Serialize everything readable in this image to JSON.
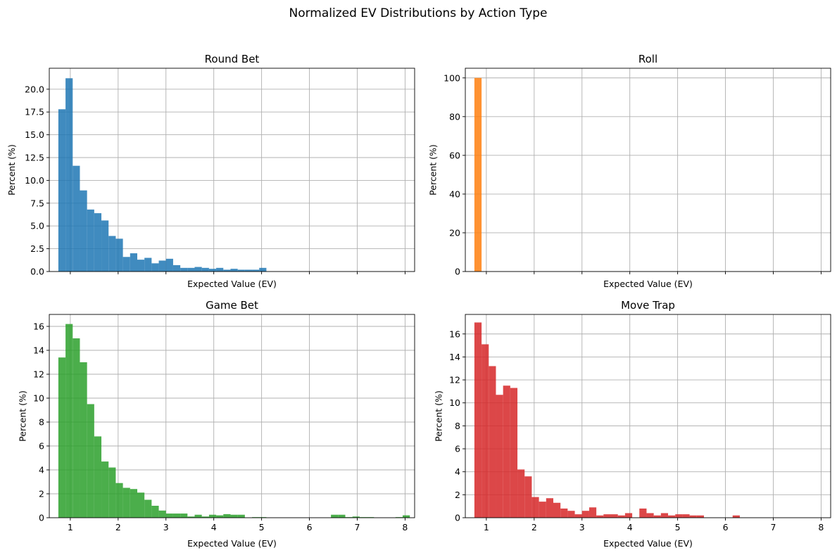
{
  "figure_title": "Normalized EV Distributions by Action Type",
  "chart_data": [
    {
      "type": "bar",
      "title": "Round Bet",
      "xlabel": "Expected Value (EV)",
      "ylabel": "Percent (%)",
      "color": "#1f77b4",
      "xlim": [
        0.56,
        8.2
      ],
      "ylim": [
        0,
        22.3
      ],
      "xticks": [
        1,
        2,
        3,
        4,
        5,
        6,
        7,
        8
      ],
      "show_xtick_labels": false,
      "yticks": [
        0.0,
        2.5,
        5.0,
        7.5,
        10.0,
        12.5,
        15.0,
        17.5,
        20.0
      ],
      "ytick_labels": [
        "0.0",
        "2.5",
        "5.0",
        "7.5",
        "10.0",
        "12.5",
        "15.0",
        "17.5",
        "20.0"
      ],
      "grid": true,
      "bin_start": 0.75,
      "bin_width": 0.15,
      "values": [
        17.8,
        21.2,
        11.6,
        8.9,
        6.8,
        6.4,
        5.6,
        3.9,
        3.6,
        1.6,
        2.0,
        1.3,
        1.5,
        0.9,
        1.2,
        1.4,
        0.7,
        0.4,
        0.4,
        0.5,
        0.4,
        0.3,
        0.4,
        0.2,
        0.3,
        0.2,
        0.2,
        0.2,
        0.4
      ]
    },
    {
      "type": "bar",
      "title": "Roll",
      "xlabel": "Expected Value (EV)",
      "ylabel": "Percent (%)",
      "color": "#ff7f0e",
      "xlim": [
        0.56,
        8.2
      ],
      "ylim": [
        0,
        105
      ],
      "xticks": [
        1,
        2,
        3,
        4,
        5,
        6,
        7,
        8
      ],
      "show_xtick_labels": false,
      "yticks": [
        0,
        20,
        40,
        60,
        80,
        100
      ],
      "ytick_labels": [
        "0",
        "20",
        "40",
        "60",
        "80",
        "100"
      ],
      "grid": true,
      "bin_start": 0.75,
      "bin_width": 0.15,
      "values": [
        100
      ]
    },
    {
      "type": "bar",
      "title": "Game Bet",
      "xlabel": "Expected Value (EV)",
      "ylabel": "Percent (%)",
      "color": "#2ca02c",
      "xlim": [
        0.56,
        8.2
      ],
      "ylim": [
        0,
        17.0
      ],
      "xticks": [
        1,
        2,
        3,
        4,
        5,
        6,
        7,
        8
      ],
      "xtick_labels": [
        "1",
        "2",
        "3",
        "4",
        "5",
        "6",
        "7",
        "8"
      ],
      "show_xtick_labels": true,
      "yticks": [
        0,
        2,
        4,
        6,
        8,
        10,
        12,
        14,
        16
      ],
      "ytick_labels": [
        "0",
        "2",
        "4",
        "6",
        "8",
        "10",
        "12",
        "14",
        "16"
      ],
      "grid": true,
      "bin_start": 0.75,
      "bin_width": 0.15,
      "values": [
        13.4,
        16.2,
        15.0,
        13.0,
        9.5,
        6.8,
        4.7,
        4.2,
        2.9,
        2.5,
        2.4,
        2.1,
        1.5,
        1.0,
        0.6,
        0.35,
        0.35,
        0.35,
        0.1,
        0.25,
        0.1,
        0.25,
        0.2,
        0.3,
        0.25,
        0.25,
        0.0,
        0.05,
        0.05,
        0.0,
        0.0,
        0.0,
        0.0,
        0.0,
        0.0,
        0.0,
        0.0,
        0.0,
        0.25,
        0.25,
        0.05,
        0.1,
        0.05,
        0.05,
        0.0,
        0.0,
        0.0,
        0.05,
        0.2
      ]
    },
    {
      "type": "bar",
      "title": "Move Trap",
      "xlabel": "Expected Value (EV)",
      "ylabel": "Percent (%)",
      "color": "#d62728",
      "xlim": [
        0.56,
        8.2
      ],
      "ylim": [
        0,
        17.7
      ],
      "xticks": [
        1,
        2,
        3,
        4,
        5,
        6,
        7,
        8
      ],
      "xtick_labels": [
        "1",
        "2",
        "3",
        "4",
        "5",
        "6",
        "7",
        "8"
      ],
      "show_xtick_labels": true,
      "yticks": [
        0,
        2,
        4,
        6,
        8,
        10,
        12,
        14,
        16
      ],
      "ytick_labels": [
        "0",
        "2",
        "4",
        "6",
        "8",
        "10",
        "12",
        "14",
        "16"
      ],
      "grid": true,
      "bin_start": 0.75,
      "bin_width": 0.15,
      "values": [
        17.0,
        15.1,
        13.2,
        10.7,
        11.5,
        11.3,
        4.2,
        3.6,
        1.8,
        1.4,
        1.7,
        1.3,
        0.8,
        0.6,
        0.3,
        0.6,
        0.9,
        0.2,
        0.3,
        0.3,
        0.2,
        0.4,
        0.0,
        0.8,
        0.4,
        0.2,
        0.4,
        0.2,
        0.3,
        0.3,
        0.2,
        0.2,
        0.0,
        0.0,
        0.0,
        0.0,
        0.2
      ]
    }
  ]
}
